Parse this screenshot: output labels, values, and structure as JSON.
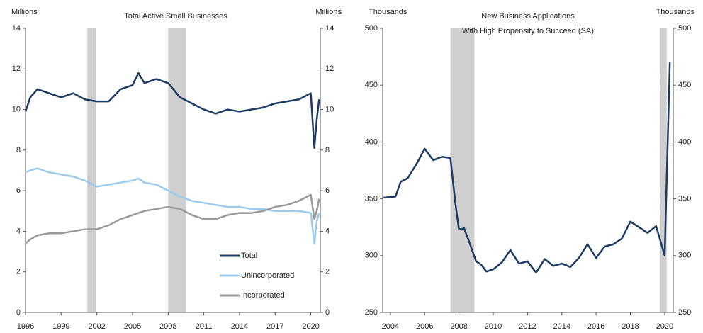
{
  "chart_data": [
    {
      "type": "line",
      "title": "Total Active Small Businesses",
      "y_label": "Millions",
      "y2_label": "Millions",
      "x": [
        1996,
        1996.4,
        1997,
        1998,
        1999,
        2000,
        2001,
        2002,
        2003,
        2004,
        2005,
        2005.5,
        2006,
        2007,
        2008,
        2009,
        2010,
        2011,
        2012,
        2013,
        2014,
        2015,
        2016,
        2017,
        2018,
        2019,
        2020,
        2020.3,
        2020.5,
        2020.7
      ],
      "series": [
        {
          "name": "Total",
          "color": "#1c3a63",
          "values": [
            9.9,
            10.6,
            11.0,
            10.8,
            10.6,
            10.8,
            10.5,
            10.4,
            10.4,
            11.0,
            11.2,
            11.8,
            11.3,
            11.5,
            11.3,
            10.6,
            10.3,
            10.0,
            9.8,
            10.0,
            9.9,
            10.0,
            10.1,
            10.3,
            10.4,
            10.5,
            10.8,
            8.1,
            9.5,
            10.5
          ]
        },
        {
          "name": "Unincorporated",
          "color": "#9ccbee",
          "values": [
            6.9,
            7.0,
            7.1,
            6.9,
            6.8,
            6.7,
            6.5,
            6.2,
            6.3,
            6.4,
            6.5,
            6.6,
            6.4,
            6.3,
            6.0,
            5.7,
            5.5,
            5.4,
            5.3,
            5.2,
            5.2,
            5.1,
            5.1,
            5.0,
            5.0,
            5.0,
            4.9,
            3.4,
            4.5,
            4.9
          ]
        },
        {
          "name": "Incorporated",
          "color": "#9a9a9a",
          "values": [
            3.4,
            3.6,
            3.8,
            3.9,
            3.9,
            4.0,
            4.1,
            4.1,
            4.3,
            4.6,
            4.8,
            4.9,
            5.0,
            5.1,
            5.2,
            5.1,
            4.8,
            4.6,
            4.6,
            4.8,
            4.9,
            4.9,
            5.0,
            5.2,
            5.3,
            5.5,
            5.8,
            4.6,
            5.0,
            5.6
          ]
        }
      ],
      "shaded_periods": [
        [
          2001.2,
          2001.9
        ],
        [
          2008.0,
          2009.5
        ]
      ],
      "xlim": [
        1996,
        2020.8
      ],
      "xticks": [
        1996,
        1999,
        2002,
        2005,
        2008,
        2011,
        2014,
        2017,
        2020
      ],
      "ylim": [
        0,
        14
      ],
      "yticks": [
        0,
        2,
        4,
        6,
        8,
        10,
        12,
        14
      ],
      "y2lim": [
        0,
        14
      ],
      "y2ticks": [
        0,
        2,
        4,
        6,
        8,
        10,
        12,
        14
      ],
      "legend": "lower right"
    },
    {
      "type": "line",
      "title": "New Business Applications",
      "subtitle": "With High Propensity to Succeed (SA)",
      "y_label": "Thousands",
      "y2_label": "Thousands",
      "x": [
        2003.6,
        2004.3,
        2004.6,
        2005,
        2005.5,
        2006,
        2006.5,
        2007,
        2007.5,
        2007.8,
        2008,
        2008.3,
        2008.6,
        2009,
        2009.3,
        2009.6,
        2010,
        2010.5,
        2011,
        2011.5,
        2012,
        2012.5,
        2013,
        2013.5,
        2014,
        2014.5,
        2015,
        2015.5,
        2016,
        2016.5,
        2017,
        2017.5,
        2018,
        2018.5,
        2019,
        2019.5,
        2020,
        2020.3
      ],
      "series": [
        {
          "color": "#1c3a63",
          "values": [
            351,
            352,
            365,
            368,
            380,
            394,
            384,
            387,
            386,
            345,
            323,
            324,
            312,
            295,
            292,
            286,
            288,
            294,
            305,
            293,
            295,
            285,
            297,
            291,
            293,
            290,
            298,
            310,
            298,
            308,
            310,
            315,
            330,
            325,
            320,
            326,
            300,
            470
          ]
        }
      ],
      "shaded_periods": [
        [
          2007.5,
          2008.9
        ],
        [
          2019.75,
          2020.12
        ]
      ],
      "xlim": [
        2003.55,
        2020.5
      ],
      "xticks": [
        2004,
        2006,
        2008,
        2010,
        2012,
        2014,
        2016,
        2018,
        2020
      ],
      "ylim": [
        250,
        500
      ],
      "yticks": [
        250,
        300,
        350,
        400,
        450,
        500
      ],
      "y2lim": [
        250,
        500
      ],
      "y2ticks": [
        250,
        300,
        350,
        400,
        450,
        500
      ]
    }
  ]
}
